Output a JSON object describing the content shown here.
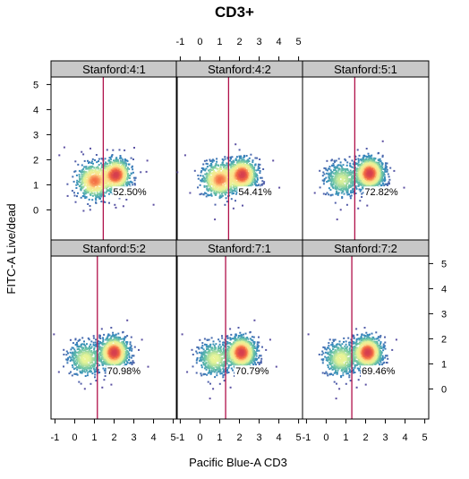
{
  "chart_data": {
    "type": "scatter",
    "subtype": "flow-cytometry density trellis (2 rows x 3 panels)",
    "title": "CD3+",
    "xlabel": "Pacific Blue-A CD3",
    "ylabel": "FITC-A Live/dead",
    "xlim": [
      -1.2,
      5.2
    ],
    "ylim": [
      -1.2,
      5.3
    ],
    "x_ticks": [
      -1,
      0,
      1,
      2,
      3,
      4,
      5
    ],
    "y_ticks": [
      0,
      1,
      2,
      3,
      4,
      5
    ],
    "strip_color": "#c8c8c8",
    "gate_line_color": "#b0104a",
    "density_colormap": "spectral (dark blue → cyan → yellow → orange → red)",
    "panels": [
      {
        "label": "Stanford:4:1",
        "row": 1,
        "col": 1,
        "gate_x": 1.45,
        "percent": "52.50%",
        "pop_neg": [
          1.0,
          1.15
        ],
        "pop_pos": [
          2.1,
          1.4
        ],
        "neg_weight": 0.45
      },
      {
        "label": "Stanford:4:2",
        "row": 1,
        "col": 2,
        "gate_x": 1.45,
        "percent": "54.41%",
        "pop_neg": [
          1.0,
          1.2
        ],
        "pop_pos": [
          2.15,
          1.4
        ],
        "neg_weight": 0.45
      },
      {
        "label": "Stanford:5:1",
        "row": 1,
        "col": 3,
        "gate_x": 1.45,
        "percent": "72.82%",
        "pop_neg": [
          0.8,
          1.2
        ],
        "pop_pos": [
          2.2,
          1.45
        ],
        "neg_weight": 0.27
      },
      {
        "label": "Stanford:5:2",
        "row": 2,
        "col": 1,
        "gate_x": 1.15,
        "percent": "70.98%",
        "pop_neg": [
          0.55,
          1.2
        ],
        "pop_pos": [
          2.0,
          1.45
        ],
        "neg_weight": 0.29
      },
      {
        "label": "Stanford:7:1",
        "row": 2,
        "col": 2,
        "gate_x": 1.3,
        "percent": "70.79%",
        "pop_neg": [
          0.75,
          1.2
        ],
        "pop_pos": [
          2.1,
          1.45
        ],
        "neg_weight": 0.29
      },
      {
        "label": "Stanford:7:2",
        "row": 2,
        "col": 3,
        "gate_x": 1.3,
        "percent": "69.46%",
        "pop_neg": [
          0.75,
          1.2
        ],
        "pop_pos": [
          2.1,
          1.45
        ],
        "neg_weight": 0.3
      }
    ]
  }
}
